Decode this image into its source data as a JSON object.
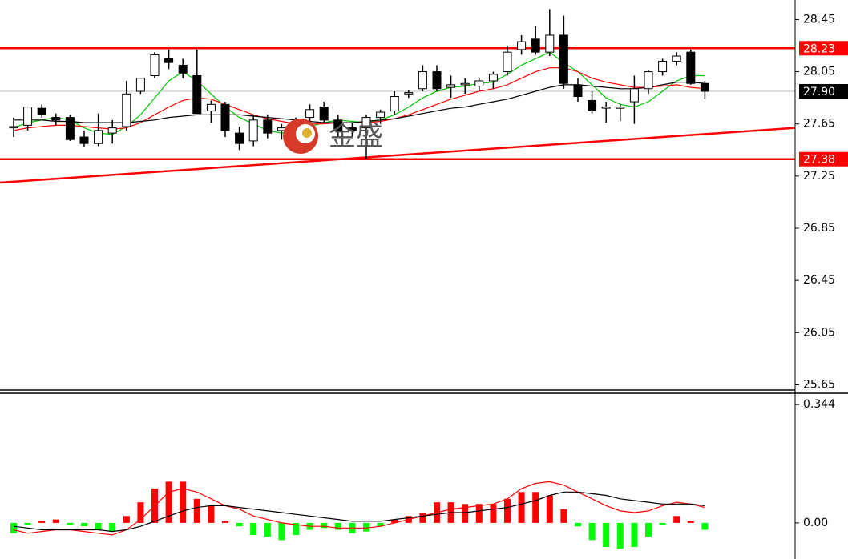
{
  "chart_data": [
    {
      "type": "candlestick",
      "open": [
        27.62,
        27.64,
        27.77,
        27.7,
        27.7,
        27.55,
        27.5,
        27.58,
        27.63,
        27.9,
        28.02,
        28.15,
        28.1,
        28.02,
        27.75,
        27.8,
        27.58,
        27.52,
        27.68,
        27.6,
        27.6,
        27.7,
        27.78,
        27.68,
        27.62,
        27.62,
        27.7,
        27.75,
        27.88,
        27.92,
        28.05,
        27.93,
        27.95,
        27.94,
        27.98,
        28.05,
        28.22,
        28.3,
        28.2,
        28.33,
        27.95,
        27.83,
        27.78,
        27.77,
        27.82,
        27.92,
        28.05,
        28.13,
        28.2,
        27.96
      ],
      "high": [
        27.7,
        27.78,
        27.8,
        27.73,
        27.72,
        27.6,
        27.73,
        27.68,
        27.98,
        28.0,
        28.2,
        28.22,
        28.15,
        28.22,
        27.83,
        27.82,
        27.63,
        27.72,
        27.72,
        27.65,
        27.7,
        27.8,
        27.82,
        27.72,
        27.66,
        27.72,
        27.76,
        27.9,
        27.91,
        28.1,
        28.1,
        28.02,
        28.0,
        28.0,
        28.05,
        28.25,
        28.33,
        28.4,
        28.53,
        28.48,
        28.0,
        27.9,
        27.82,
        27.8,
        28.02,
        28.06,
        28.15,
        28.2,
        28.22,
        27.98
      ],
      "low": [
        27.55,
        27.6,
        27.7,
        27.64,
        27.52,
        27.47,
        27.48,
        27.5,
        27.6,
        27.88,
        28.0,
        28.07,
        28.0,
        27.75,
        27.66,
        27.55,
        27.45,
        27.48,
        27.54,
        27.53,
        27.55,
        27.6,
        27.66,
        27.55,
        27.55,
        27.38,
        27.65,
        27.72,
        27.85,
        27.9,
        27.9,
        27.85,
        27.88,
        27.9,
        27.92,
        28.02,
        28.18,
        28.18,
        28.17,
        27.92,
        27.82,
        27.73,
        27.66,
        27.67,
        27.65,
        27.88,
        28.02,
        28.1,
        27.95,
        27.84
      ],
      "close": [
        27.63,
        27.78,
        27.72,
        27.68,
        27.53,
        27.5,
        27.6,
        27.62,
        27.88,
        28.0,
        28.18,
        28.12,
        28.04,
        27.73,
        27.8,
        27.6,
        27.5,
        27.68,
        27.58,
        27.62,
        27.67,
        27.76,
        27.68,
        27.6,
        27.6,
        27.7,
        27.74,
        27.86,
        27.89,
        28.05,
        27.92,
        27.95,
        27.96,
        27.98,
        28.03,
        28.2,
        28.28,
        28.2,
        28.33,
        27.96,
        27.86,
        27.75,
        27.78,
        27.78,
        27.92,
        28.05,
        28.13,
        28.17,
        27.96,
        27.9
      ],
      "up_color": "#ffffff",
      "down_color": "#000000",
      "series": [
        {
          "color": "#00c800",
          "values": [
            27.62,
            27.66,
            27.68,
            27.7,
            27.68,
            27.62,
            27.58,
            27.57,
            27.63,
            27.72,
            27.85,
            27.98,
            28.05,
            27.98,
            27.88,
            27.78,
            27.7,
            27.65,
            27.6,
            27.58,
            27.6,
            27.63,
            27.66,
            27.68,
            27.67,
            27.66,
            27.68,
            27.72,
            27.78,
            27.85,
            27.9,
            27.93,
            27.94,
            27.96,
            27.97,
            28.03,
            28.1,
            28.15,
            28.2,
            28.12,
            28.05,
            27.95,
            27.85,
            27.8,
            27.78,
            27.82,
            27.9,
            27.98,
            28.02,
            28.02
          ]
        },
        {
          "color": "#ff0000",
          "values": [
            27.6,
            27.62,
            27.63,
            27.64,
            27.64,
            27.63,
            27.62,
            27.61,
            27.62,
            27.66,
            27.72,
            27.78,
            27.83,
            27.85,
            27.84,
            27.8,
            27.76,
            27.72,
            27.69,
            27.67,
            27.65,
            27.65,
            27.65,
            27.66,
            27.66,
            27.66,
            27.67,
            27.69,
            27.72,
            27.76,
            27.8,
            27.84,
            27.87,
            27.9,
            27.92,
            27.95,
            28.0,
            28.05,
            28.08,
            28.08,
            28.05,
            28.0,
            27.97,
            27.95,
            27.93,
            27.93,
            27.94,
            27.95,
            27.93,
            27.92
          ]
        },
        {
          "color": "#000000",
          "values": [
            27.68,
            27.68,
            27.68,
            27.67,
            27.67,
            27.66,
            27.66,
            27.66,
            27.66,
            27.67,
            27.68,
            27.7,
            27.71,
            27.72,
            27.72,
            27.72,
            27.72,
            27.71,
            27.7,
            27.69,
            27.68,
            27.67,
            27.66,
            27.66,
            27.66,
            27.67,
            27.68,
            27.69,
            27.71,
            27.73,
            27.75,
            27.77,
            27.78,
            27.8,
            27.82,
            27.84,
            27.87,
            27.9,
            27.93,
            27.95,
            27.95,
            27.94,
            27.93,
            27.92,
            27.92,
            27.93,
            27.95,
            27.97,
            27.97,
            27.96
          ]
        }
      ],
      "levels": [
        {
          "value": 28.23,
          "label": "28.23",
          "color": "#ff0000",
          "line_color": "#ff0000"
        },
        {
          "value": 27.9,
          "label": "27.90",
          "color": "#000000",
          "line_color": "#c0c0c0"
        },
        {
          "value": 27.38,
          "label": "27.38",
          "color": "#ff0000",
          "line_color": "#ff0000"
        }
      ],
      "trendline": [
        27.2,
        27.62
      ],
      "trend_color": "#ff0000",
      "ylim": [
        25.61,
        28.6
      ],
      "yticks": [
        28.45,
        28.05,
        27.65,
        27.25,
        26.85,
        26.45,
        26.05,
        25.65
      ],
      "watermark": "金盛"
    },
    {
      "type": "macd",
      "values": [
        -0.03,
        -0.005,
        0.005,
        0.01,
        -0.005,
        -0.01,
        -0.02,
        -0.025,
        0.02,
        0.06,
        0.1,
        0.12,
        0.12,
        0.07,
        0.05,
        0.005,
        -0.01,
        -0.035,
        -0.04,
        -0.05,
        -0.035,
        -0.02,
        -0.015,
        -0.02,
        -0.03,
        -0.025,
        -0.01,
        0.01,
        0.02,
        0.03,
        0.06,
        0.06,
        0.055,
        0.055,
        0.055,
        0.07,
        0.09,
        0.09,
        0.08,
        0.04,
        -0.01,
        -0.05,
        -0.07,
        -0.075,
        -0.07,
        -0.04,
        -0.005,
        0.02,
        0.005,
        -0.02
      ],
      "pos_color": "#ff0000",
      "neg_color": "#00ff00",
      "series": [
        {
          "color": "#ff0000",
          "values": [
            -0.02,
            -0.03,
            -0.025,
            -0.02,
            -0.02,
            -0.025,
            -0.03,
            -0.035,
            -0.02,
            0.01,
            0.05,
            0.09,
            0.1,
            0.09,
            0.07,
            0.05,
            0.04,
            0.02,
            0.01,
            0.0,
            -0.005,
            -0.01,
            -0.01,
            -0.015,
            -0.015,
            -0.015,
            -0.01,
            0.0,
            0.01,
            0.02,
            0.03,
            0.04,
            0.045,
            0.05,
            0.055,
            0.07,
            0.1,
            0.115,
            0.12,
            0.11,
            0.09,
            0.07,
            0.05,
            0.035,
            0.03,
            0.035,
            0.05,
            0.06,
            0.055,
            0.045
          ]
        },
        {
          "color": "#000000",
          "values": [
            -0.01,
            -0.015,
            -0.02,
            -0.02,
            -0.02,
            -0.02,
            -0.02,
            -0.025,
            -0.02,
            -0.01,
            0.005,
            0.02,
            0.035,
            0.045,
            0.05,
            0.05,
            0.045,
            0.04,
            0.035,
            0.03,
            0.025,
            0.02,
            0.015,
            0.01,
            0.005,
            0.005,
            0.005,
            0.01,
            0.015,
            0.02,
            0.025,
            0.03,
            0.03,
            0.035,
            0.04,
            0.045,
            0.055,
            0.065,
            0.08,
            0.09,
            0.09,
            0.085,
            0.08,
            0.07,
            0.065,
            0.06,
            0.055,
            0.055,
            0.055,
            0.05
          ]
        }
      ],
      "ylim": [
        -0.105,
        0.377
      ],
      "yticks": [
        0.344,
        {
          "value": 0,
          "label": "0.00"
        }
      ]
    }
  ]
}
